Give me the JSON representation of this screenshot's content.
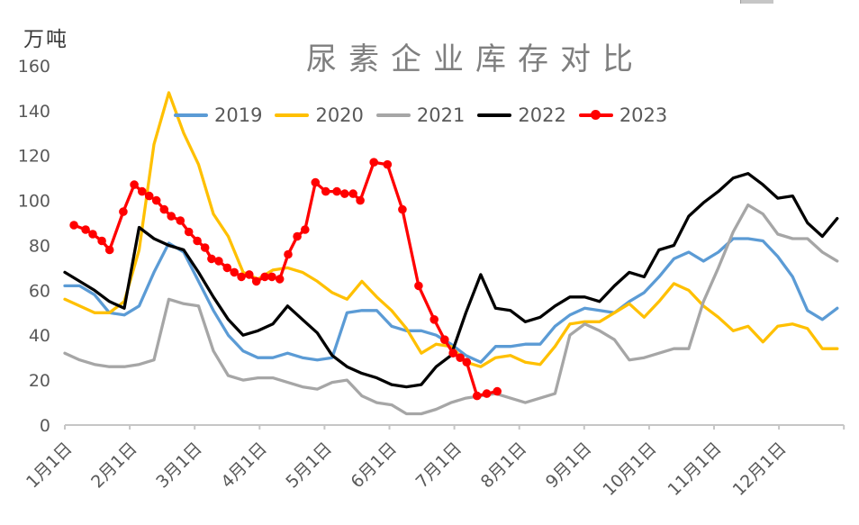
{
  "artifacts": {
    "top_bar_fragment": "scrollbar-fragment"
  },
  "chart_data": {
    "type": "line",
    "title": "尿素企业库存对比",
    "ylabel": "万吨",
    "xlabel": "",
    "ylim": [
      0,
      160
    ],
    "yticks": [
      0,
      20,
      40,
      60,
      80,
      100,
      120,
      140,
      160
    ],
    "xtick_labels": [
      "1月1日",
      "2月1日",
      "3月1日",
      "4月1日",
      "5月1日",
      "6月1日",
      "7月1日",
      "8月1日",
      "9月1日",
      "10月1日",
      "11月1日",
      "12月1日"
    ],
    "x_unit": "months_since_jan1_0_to_12",
    "grid": false,
    "legend_position": "top-center",
    "axis_color": "#c6c6c6",
    "tick_label_color": "#595959",
    "title_color": "#7f7f7f",
    "series": [
      {
        "name": "2019",
        "color": "#5B9BD5",
        "marker": "none",
        "x_start": 0,
        "x_step": 0.2288,
        "values": [
          62,
          62,
          58,
          50,
          49,
          53,
          68,
          81,
          77,
          64,
          51,
          40,
          33,
          30,
          30,
          32,
          30,
          29,
          30,
          50,
          51,
          51,
          44,
          42,
          42,
          40,
          36,
          31,
          28,
          35,
          35,
          36,
          36,
          44,
          49,
          52,
          51,
          50,
          55,
          59,
          66,
          74,
          77,
          73,
          77,
          83,
          83,
          82,
          75,
          66,
          51,
          47,
          52
        ]
      },
      {
        "name": "2020",
        "color": "#FFC000",
        "marker": "none",
        "x_start": 0,
        "x_step": 0.2288,
        "values": [
          56,
          53,
          50,
          50,
          55,
          78,
          125,
          148,
          130,
          116,
          94,
          84,
          68,
          65,
          69,
          70,
          68,
          64,
          59,
          56,
          64,
          57,
          51,
          43,
          32,
          36,
          35,
          28,
          26,
          30,
          31,
          28,
          27,
          35,
          45,
          46,
          46,
          50,
          54,
          48,
          55,
          63,
          60,
          53,
          48,
          42,
          44,
          37,
          44,
          45,
          43,
          34,
          34
        ]
      },
      {
        "name": "2021",
        "color": "#A6A6A6",
        "marker": "none",
        "x_start": 0,
        "x_step": 0.2288,
        "values": [
          32,
          29,
          27,
          26,
          26,
          27,
          29,
          56,
          54,
          53,
          33,
          22,
          20,
          21,
          21,
          19,
          17,
          16,
          19,
          20,
          13,
          10,
          9,
          5,
          5,
          7,
          10,
          12,
          13,
          14,
          12,
          10,
          12,
          14,
          40,
          45,
          42,
          38,
          29,
          30,
          32,
          34,
          34,
          55,
          70,
          86,
          98,
          94,
          85,
          83,
          83,
          77,
          73
        ]
      },
      {
        "name": "2022",
        "color": "#000000",
        "marker": "none",
        "x_start": 0,
        "x_step": 0.2288,
        "values": [
          68,
          64,
          60,
          55,
          52,
          88,
          83,
          80,
          78,
          68,
          57,
          47,
          40,
          42,
          45,
          53,
          47,
          41,
          31,
          26,
          23,
          21,
          18,
          17,
          18,
          26,
          31,
          50,
          67,
          52,
          51,
          46,
          48,
          53,
          57,
          57,
          55,
          62,
          68,
          66,
          78,
          80,
          93,
          99,
          104,
          110,
          112,
          107,
          101,
          102,
          90,
          84,
          92
        ]
      },
      {
        "name": "2023",
        "color": "#FF0000",
        "marker": "circle",
        "points": [
          [
            0.14,
            89
          ],
          [
            0.32,
            87
          ],
          [
            0.43,
            85
          ],
          [
            0.57,
            82
          ],
          [
            0.69,
            78
          ],
          [
            0.9,
            95
          ],
          [
            1.07,
            107
          ],
          [
            1.19,
            104
          ],
          [
            1.3,
            102
          ],
          [
            1.41,
            100
          ],
          [
            1.53,
            96
          ],
          [
            1.64,
            93
          ],
          [
            1.78,
            91
          ],
          [
            1.91,
            86
          ],
          [
            2.04,
            82
          ],
          [
            2.16,
            79
          ],
          [
            2.26,
            74
          ],
          [
            2.37,
            73
          ],
          [
            2.5,
            70
          ],
          [
            2.61,
            68
          ],
          [
            2.72,
            66
          ],
          [
            2.84,
            67
          ],
          [
            2.95,
            64
          ],
          [
            3.08,
            66
          ],
          [
            3.19,
            66
          ],
          [
            3.31,
            65
          ],
          [
            3.44,
            76
          ],
          [
            3.58,
            84
          ],
          [
            3.7,
            87
          ],
          [
            3.86,
            108
          ],
          [
            4.02,
            104
          ],
          [
            4.19,
            104
          ],
          [
            4.31,
            103
          ],
          [
            4.44,
            103
          ],
          [
            4.55,
            100
          ],
          [
            4.76,
            117
          ],
          [
            4.97,
            116
          ],
          [
            5.2,
            96
          ],
          [
            5.45,
            62
          ],
          [
            5.69,
            47
          ],
          [
            5.85,
            38
          ],
          [
            5.98,
            32
          ],
          [
            6.09,
            30
          ],
          [
            6.19,
            28
          ],
          [
            6.35,
            13
          ],
          [
            6.5,
            14
          ],
          [
            6.66,
            15
          ]
        ]
      }
    ]
  }
}
